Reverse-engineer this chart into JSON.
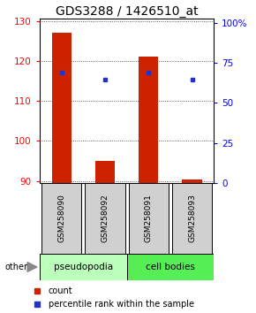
{
  "title": "GDS3288 / 1426510_at",
  "samples": [
    "GSM258090",
    "GSM258092",
    "GSM258091",
    "GSM258093"
  ],
  "bar_values": [
    127.0,
    95.0,
    121.0,
    90.5
  ],
  "bar_base": 89.5,
  "blue_dot_values": [
    117.0,
    115.3,
    117.0,
    115.3
  ],
  "ylim": [
    89.5,
    130.5
  ],
  "yticks_left": [
    90,
    100,
    110,
    120,
    130
  ],
  "yticks_right_vals": [
    0,
    25,
    50,
    75,
    100
  ],
  "yticks_right_labels": [
    "0",
    "25",
    "50",
    "75",
    "100%"
  ],
  "ylim_right": [
    0,
    102.5
  ],
  "bar_color": "#cc2200",
  "dot_color": "#2233cc",
  "group_labels": [
    "pseudopodia",
    "cell bodies"
  ],
  "pseudopodia_color": "#bbffbb",
  "cell_bodies_color": "#55ee55",
  "x_positions": [
    1,
    2,
    3,
    4
  ],
  "title_fontsize": 10,
  "tick_fontsize": 7.5,
  "bar_width": 0.45,
  "legend_count_label": "count",
  "legend_pct_label": "percentile rank within the sample",
  "other_label": "other"
}
